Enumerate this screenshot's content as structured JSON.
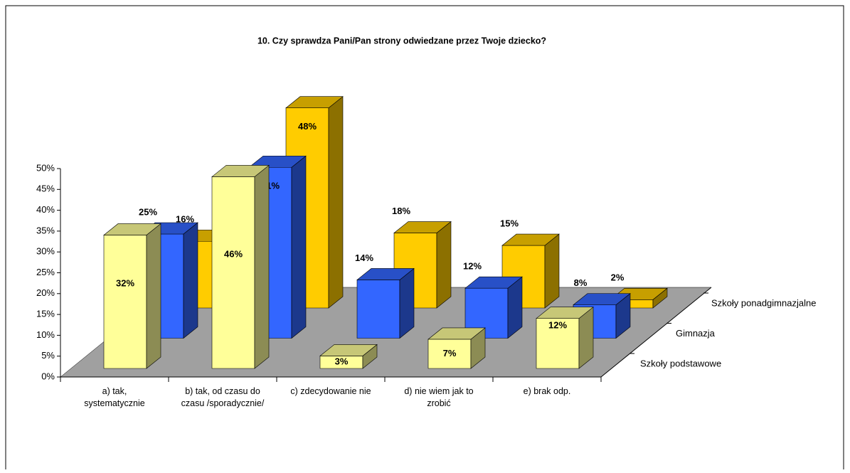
{
  "chart_data": {
    "type": "bar3d",
    "title": "10. Czy sprawdza Pani/Pan strony odwiedzane przez Twoje dziecko?",
    "categories": [
      "a) tak, systematycznie",
      "b) tak, od czasu do czasu /sporadycznie/",
      "c) zdecydowanie nie",
      "d) nie wiem jak to zrobić",
      "e) brak odp."
    ],
    "series": [
      {
        "name": "Szkoły podstawowe",
        "color": "#ffff99",
        "values": [
          32,
          46,
          3,
          7,
          12
        ],
        "value_labels": [
          "32%",
          "46%",
          "3%",
          "7%",
          "12%"
        ]
      },
      {
        "name": "Gimnazja",
        "color": "#3366ff",
        "values": [
          25,
          41,
          14,
          12,
          8
        ],
        "value_labels": [
          "25%",
          "41%",
          "14%",
          "12%",
          "8%"
        ]
      },
      {
        "name": "Szkoły ponadgimnazjalne",
        "color": "#ffcc00",
        "values": [
          16,
          48,
          18,
          15,
          2
        ],
        "value_labels": [
          "16%",
          "48%",
          "18%",
          "15%",
          "2%"
        ]
      }
    ],
    "ylim": [
      0,
      50
    ],
    "yticks": [
      {
        "value": 0,
        "label": "0%"
      },
      {
        "value": 5,
        "label": "5%"
      },
      {
        "value": 10,
        "label": "10%"
      },
      {
        "value": 15,
        "label": "15%"
      },
      {
        "value": 20,
        "label": "20%"
      },
      {
        "value": 25,
        "label": "25%"
      },
      {
        "value": 30,
        "label": "30%"
      },
      {
        "value": 35,
        "label": "35%"
      },
      {
        "value": 40,
        "label": "40%"
      },
      {
        "value": 45,
        "label": "45%"
      },
      {
        "value": 50,
        "label": "50%"
      }
    ]
  }
}
